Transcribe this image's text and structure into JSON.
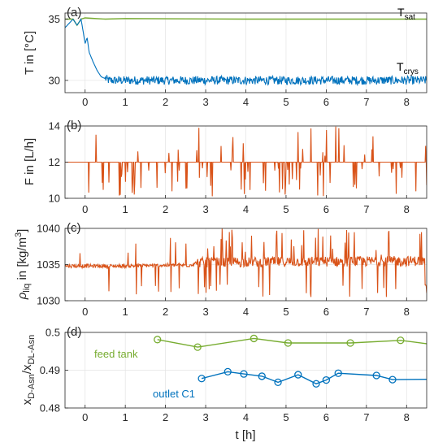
{
  "colors": {
    "green": "#77AC30",
    "blue": "#0072BD",
    "orange": "#D95319"
  },
  "chart_data": [
    {
      "panel": "(a)",
      "type": "line",
      "ylabel": "T in [°C]",
      "xlim": [
        -0.5,
        8.5
      ],
      "ylim": [
        29,
        35.5
      ],
      "yticks": [
        "30",
        "35"
      ],
      "xticks": [
        "0",
        "1",
        "2",
        "3",
        "4",
        "5",
        "6",
        "7",
        "8"
      ],
      "grid": true,
      "series": [
        {
          "name": "T_sat",
          "label_main": "T",
          "label_sub": "sat",
          "color": "#77AC30",
          "x": [
            -0.5,
            -0.3,
            -0.2,
            -0.1,
            0.0,
            0.5,
            1.0,
            4.0,
            8.5
          ],
          "y": [
            35.0,
            35.0,
            34.5,
            35.0,
            35.1,
            35.0,
            35.05,
            35.0,
            35.0
          ]
        },
        {
          "name": "T_crys",
          "label_main": "T",
          "label_sub": "crys",
          "color": "#0072BD",
          "x": [
            -0.5,
            -0.3,
            -0.2,
            -0.1,
            0.0,
            0.05,
            0.1,
            0.2,
            0.3,
            0.4,
            0.6,
            8.5
          ],
          "y": [
            34.3,
            35.0,
            34.5,
            35.0,
            33.0,
            33.5,
            32.3,
            31.5,
            30.8,
            30.3,
            30.0,
            30.0
          ],
          "noise": 0.35
        }
      ]
    },
    {
      "panel": "(b)",
      "type": "line",
      "ylabel": "F in [L/h]",
      "xlim": [
        -0.5,
        8.5
      ],
      "ylim": [
        10,
        14
      ],
      "yticks": [
        "10",
        "12",
        "14"
      ],
      "xticks": [
        "0",
        "1",
        "2",
        "3",
        "4",
        "5",
        "6",
        "7",
        "8"
      ],
      "grid": true,
      "series": [
        {
          "name": "F",
          "color": "#D95319",
          "x": [
            -0.5,
            8.5
          ],
          "y": [
            12.0,
            12.0
          ],
          "spikes": {
            "min": 10.1,
            "max": 14.0
          }
        }
      ]
    },
    {
      "panel": "(c)",
      "type": "line",
      "ylabel_greek": "ρ",
      "ylabel_sub": "liq",
      "ylabel_rest": " in [kg/m",
      "ylabel_sup": "3",
      "ylabel_end": "]",
      "xlim": [
        -0.5,
        8.5
      ],
      "ylim": [
        1030,
        1040
      ],
      "yticks": [
        "1030",
        "1035",
        "1040"
      ],
      "xticks": [
        "0",
        "1",
        "2",
        "3",
        "4",
        "5",
        "6",
        "7",
        "8"
      ],
      "grid": true,
      "series": [
        {
          "name": "rho_liq",
          "color": "#D95319",
          "x": [
            -0.5,
            1.0,
            1.9,
            2.6,
            2.8,
            8.5
          ],
          "y": [
            1034.8,
            1034.8,
            1034.9,
            1034.9,
            1035.3,
            1035.5
          ],
          "spikes": {
            "min": 1030.3,
            "max": 1040.0
          }
        }
      ]
    },
    {
      "panel": "(d)",
      "type": "line",
      "ylabel_a": "x",
      "ylabel_a_sub": "D-Asn",
      "ylabel_slash": "/x",
      "ylabel_b_sub": "DL-Asn",
      "xlabel": "t [h]",
      "xlim": [
        -0.5,
        8.5
      ],
      "ylim": [
        0.48,
        0.5
      ],
      "yticks": [
        "0.48",
        "0.49",
        "0.5"
      ],
      "xticks": [
        "0",
        "1",
        "2",
        "3",
        "4",
        "5",
        "6",
        "7",
        "8"
      ],
      "grid": true,
      "series": [
        {
          "name": "feed tank",
          "color": "#77AC30",
          "x": [
            1.8,
            2.8,
            4.2,
            5.05,
            6.6,
            7.85,
            8.5
          ],
          "y": [
            0.4981,
            0.4961,
            0.4984,
            0.4972,
            0.4972,
            0.4979,
            0.497
          ],
          "markers": [
            true,
            true,
            true,
            true,
            true,
            true,
            false
          ]
        },
        {
          "name": "outlet C1",
          "color": "#0072BD",
          "x": [
            2.9,
            3.55,
            3.95,
            4.4,
            4.8,
            5.3,
            5.75,
            6.0,
            6.3,
            7.25,
            7.65,
            8.5
          ],
          "y": [
            0.4878,
            0.4896,
            0.489,
            0.4884,
            0.4868,
            0.4888,
            0.4864,
            0.4874,
            0.4892,
            0.4886,
            0.4875,
            0.4876
          ],
          "markers": [
            true,
            true,
            true,
            true,
            true,
            true,
            true,
            true,
            true,
            true,
            true,
            false
          ]
        }
      ]
    }
  ]
}
